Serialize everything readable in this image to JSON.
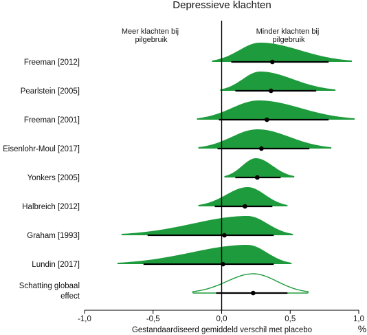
{
  "chart_data": {
    "type": "forest-density",
    "title": "Depressieve klachten",
    "xlabel": "Gestandaardiseerd gemiddeld verschil met placebo",
    "unit_label": "%",
    "xlim": [
      -1.0,
      1.0
    ],
    "xticks": [
      {
        "value": -1.0,
        "label": "-1,0"
      },
      {
        "value": -0.5,
        "label": "-0,5"
      },
      {
        "value": 0.0,
        "label": "0,0"
      },
      {
        "value": 0.5,
        "label": "0,5"
      },
      {
        "value": 1.0,
        "label": "1,0"
      }
    ],
    "annotations": {
      "left": [
        "Meer klachten bij",
        "pilgebruik"
      ],
      "right": [
        "Minder klachten bij",
        "pilgebruik"
      ]
    },
    "colors": {
      "fill": "#1e9b3c",
      "line": "#000000",
      "outline": "#1e9b3c"
    },
    "studies": [
      {
        "label": [
          "Freeman [2012]"
        ],
        "estimate": 0.37,
        "ci": [
          0.07,
          0.78
        ],
        "dist": [
          -0.07,
          0.95
        ],
        "mode": 0.28,
        "hollow": false
      },
      {
        "label": [
          "Pearlstein [2005]"
        ],
        "estimate": 0.36,
        "ci": [
          0.1,
          0.69
        ],
        "dist": [
          -0.01,
          0.83
        ],
        "mode": 0.28,
        "hollow": false
      },
      {
        "label": [
          "Freeman [2001]"
        ],
        "estimate": 0.33,
        "ci": [
          -0.02,
          0.78
        ],
        "dist": [
          -0.18,
          0.97
        ],
        "mode": 0.27,
        "hollow": false
      },
      {
        "label": [
          "Eisenlohr-Moul [2017]"
        ],
        "estimate": 0.29,
        "ci": [
          -0.03,
          0.64
        ],
        "dist": [
          -0.17,
          0.8
        ],
        "mode": 0.26,
        "hollow": false
      },
      {
        "label": [
          "Yonkers [2005]"
        ],
        "estimate": 0.26,
        "ci": [
          0.1,
          0.43
        ],
        "dist": [
          0.02,
          0.53
        ],
        "mode": 0.25,
        "hollow": false
      },
      {
        "label": [
          "Halbreich [2012]"
        ],
        "estimate": 0.17,
        "ci": [
          -0.05,
          0.37
        ],
        "dist": [
          -0.17,
          0.48
        ],
        "mode": 0.19,
        "hollow": false
      },
      {
        "label": [
          "Graham [1993]"
        ],
        "estimate": 0.02,
        "ci": [
          -0.54,
          0.38
        ],
        "dist": [
          -0.73,
          0.52
        ],
        "mode": 0.19,
        "hollow": false
      },
      {
        "label": [
          "Lundin [2017]"
        ],
        "estimate": 0.01,
        "ci": [
          -0.57,
          0.38
        ],
        "dist": [
          -0.76,
          0.51
        ],
        "mode": 0.19,
        "hollow": false
      },
      {
        "label": [
          "Schatting globaal",
          "effect"
        ],
        "estimate": 0.23,
        "ci": [
          -0.04,
          0.48
        ],
        "dist": [
          -0.21,
          0.63
        ],
        "mode": 0.23,
        "hollow": true
      }
    ]
  }
}
